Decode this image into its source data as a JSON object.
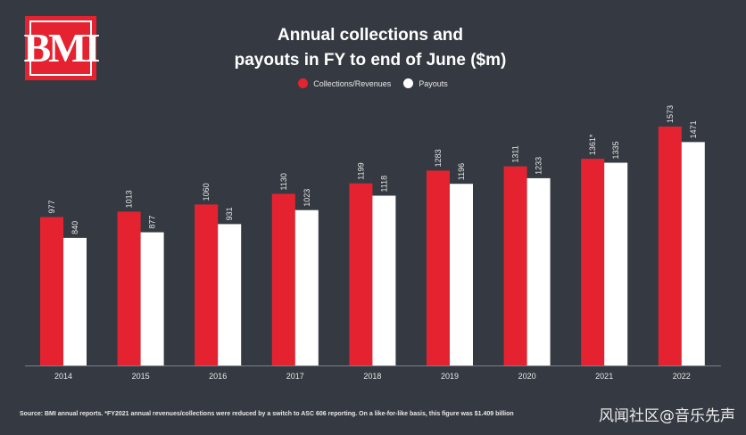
{
  "logo": {
    "text": "BMI"
  },
  "chart_data": {
    "type": "bar",
    "title_lines": [
      "Annual collections and",
      "payouts in FY to end of June ($m)"
    ],
    "categories": [
      "2014",
      "2015",
      "2016",
      "2017",
      "2018",
      "2019",
      "2020",
      "2021",
      "2022"
    ],
    "series": [
      {
        "name": "Collections/Revenues",
        "color": "#e52330",
        "values": [
          977,
          1013,
          1060,
          1130,
          1199,
          1283,
          1311,
          1361,
          1573
        ],
        "labels": [
          "977",
          "1013",
          "1060",
          "1130",
          "1199",
          "1283",
          "1311",
          "1361*",
          "1573"
        ]
      },
      {
        "name": "Payouts",
        "color": "#ffffff",
        "values": [
          840,
          877,
          931,
          1023,
          1118,
          1196,
          1233,
          1335,
          1471
        ],
        "labels": [
          "840",
          "877",
          "931",
          "1023",
          "1118",
          "1196",
          "1233",
          "1335",
          "1471"
        ]
      }
    ],
    "legend_position": "top-center",
    "grid": false
  },
  "footnote": "Source: BMI annual reports. *FY2021 annual revenues/collections were reduced by a switch to ASC 606 reporting. On a like-for-like basis, this figure was $1.409 billion",
  "watermark": "风闻社区@音乐先声"
}
